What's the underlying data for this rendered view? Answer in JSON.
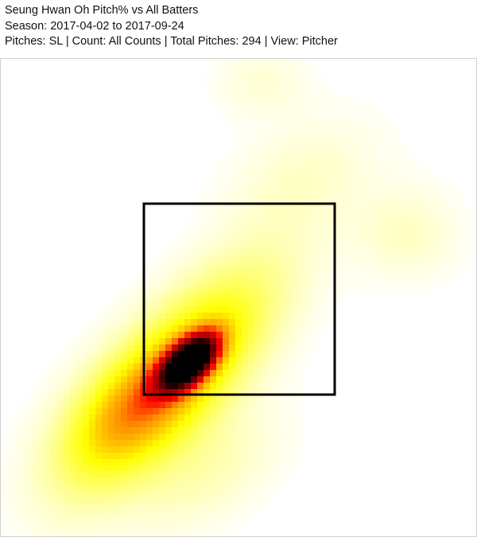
{
  "header": {
    "title": "Seung Hwan Oh Pitch% vs All Batters",
    "season": "Season: 2017-04-02 to 2017-09-24",
    "details": "Pitches: SL | Count: All Counts | Total Pitches: 294 | View: Pitcher"
  },
  "chart_data": {
    "type": "heatmap",
    "title": "Seung Hwan Oh Pitch% vs All Batters",
    "pitch_type": "SL",
    "count": "All Counts",
    "total_pitches": 294,
    "view": "Pitcher",
    "season_range": [
      "2017-04-02",
      "2017-09-24"
    ],
    "colorscale": [
      "#ffffff",
      "#ffff00",
      "#ff8c00",
      "#ff0000",
      "#8b0000",
      "#000000"
    ],
    "strike_zone": true,
    "grid": false,
    "legend": "none"
  }
}
